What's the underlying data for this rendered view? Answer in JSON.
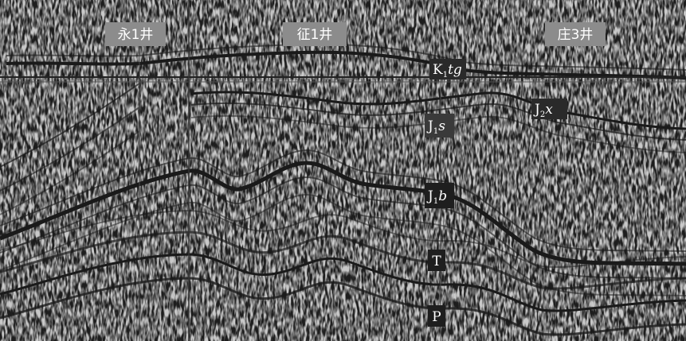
{
  "wells": [
    {
      "label": "永1井"
    },
    {
      "label": "征1井"
    },
    {
      "label": "庄3井"
    }
  ],
  "horizons": [
    {
      "base": "K",
      "sub": "1",
      "suffix": "tg"
    },
    {
      "base": "J",
      "sub": "1",
      "suffix": "s"
    },
    {
      "base": "J",
      "sub": "2",
      "suffix": "x"
    },
    {
      "base": "J",
      "sub": "1",
      "suffix": "b"
    },
    {
      "base": "T"
    },
    {
      "base": "P"
    }
  ]
}
